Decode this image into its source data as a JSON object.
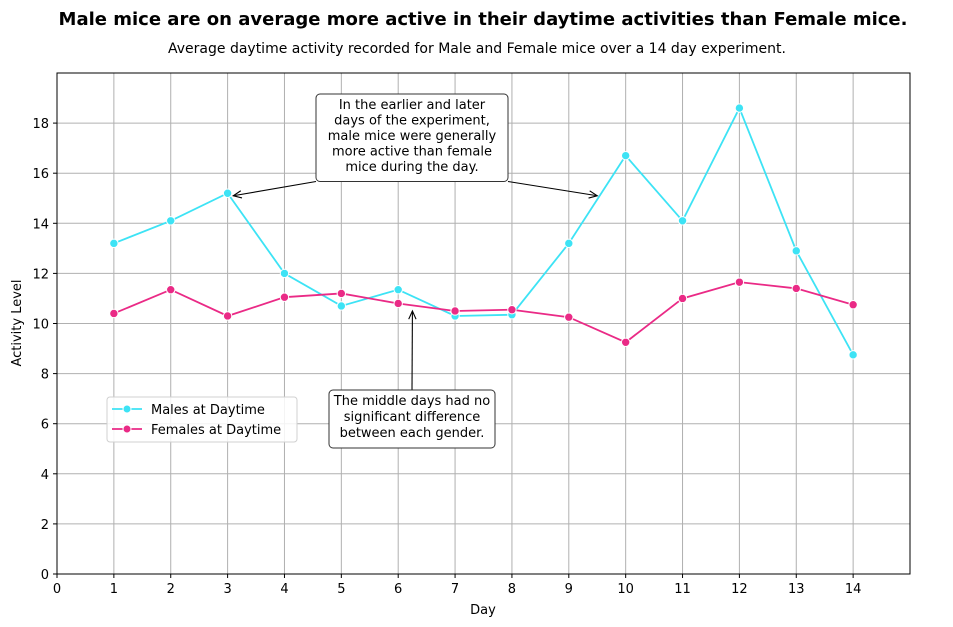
{
  "chart_data": {
    "type": "line",
    "title": "Male mice are on average more active in their daytime activities than Female mice.",
    "subtitle": "Average daytime activity recorded for Male and Female mice over a 14 day experiment.",
    "xlabel": "Day",
    "ylabel": "Activity Level",
    "xlim": [
      0,
      15
    ],
    "ylim": [
      0,
      20
    ],
    "x_ticks": [
      0,
      1,
      2,
      3,
      4,
      5,
      6,
      7,
      8,
      9,
      10,
      11,
      12,
      13,
      14
    ],
    "y_ticks": [
      0,
      2,
      4,
      6,
      8,
      10,
      12,
      14,
      16,
      18
    ],
    "x": [
      1,
      2,
      3,
      4,
      5,
      6,
      7,
      8,
      9,
      10,
      11,
      12,
      13,
      14
    ],
    "grid": true,
    "legend_position": "center-left",
    "series": [
      {
        "name": "Males at Daytime",
        "color": "#3de3f5",
        "values": [
          13.2,
          14.1,
          15.2,
          12.0,
          10.7,
          11.35,
          10.3,
          10.35,
          13.2,
          16.7,
          14.1,
          18.6,
          12.9,
          8.75
        ]
      },
      {
        "name": "Females at Daytime",
        "color": "#ea2a86",
        "values": [
          10.4,
          11.35,
          10.3,
          11.05,
          11.2,
          10.8,
          10.5,
          10.55,
          10.25,
          9.25,
          11.0,
          11.65,
          11.4,
          10.75
        ]
      }
    ],
    "annotations": [
      {
        "text": [
          "In the earlier and later",
          "days of the experiment,",
          "male mice were generally",
          "more active than female",
          "mice during the day."
        ],
        "arrows_to": [
          [
            3.1,
            15.1
          ],
          [
            9.5,
            15.1
          ]
        ]
      },
      {
        "text": [
          "The middle days had no",
          "significant difference",
          "between each gender."
        ],
        "arrows_to": [
          [
            6.25,
            10.5
          ]
        ]
      }
    ]
  }
}
